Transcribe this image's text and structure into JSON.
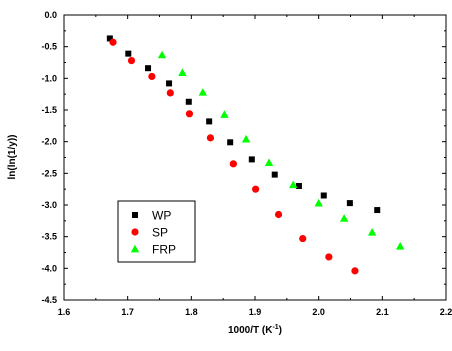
{
  "chart_data": {
    "type": "scatter",
    "xlabel": "1000/T (K",
    "xlabel_sup": "-1",
    "xlabel_suffix": ")",
    "ylabel": "ln(ln(1/y))",
    "xlim": [
      1.6,
      2.2
    ],
    "ylim": [
      -4.5,
      0.0
    ],
    "x_ticks": [
      1.6,
      1.7,
      1.8,
      1.9,
      2.0,
      2.1,
      2.2
    ],
    "x_tick_labels": [
      "1.6",
      "1.7",
      "1.8",
      "1.9",
      "2.0",
      "2.1",
      "2.2"
    ],
    "y_ticks": [
      0.0,
      -0.5,
      -1.0,
      -1.5,
      -2.0,
      -2.5,
      -3.0,
      -3.5,
      -4.0,
      -4.5
    ],
    "y_tick_labels": [
      "0.0",
      "-0.5",
      "-1.0",
      "-1.5",
      "-2.0",
      "-2.5",
      "-3.0",
      "-3.5",
      "-4.0",
      "-4.5"
    ],
    "grid": false,
    "legend_position": "bottom-left",
    "series": [
      {
        "name": "WP",
        "marker": "square",
        "color": "#000000",
        "x": [
          1.672,
          1.701,
          1.732,
          1.765,
          1.796,
          1.828,
          1.861,
          1.895,
          1.931,
          1.969,
          2.008,
          2.049,
          2.092
        ],
        "y": [
          -0.37,
          -0.61,
          -0.84,
          -1.08,
          -1.37,
          -1.68,
          -2.01,
          -2.28,
          -2.52,
          -2.7,
          -2.85,
          -2.97,
          -3.08
        ]
      },
      {
        "name": "SP",
        "marker": "circle",
        "color": "#ff0000",
        "x": [
          1.677,
          1.706,
          1.738,
          1.767,
          1.797,
          1.83,
          1.866,
          1.901,
          1.937,
          1.975,
          2.016,
          2.057
        ],
        "y": [
          -0.43,
          -0.72,
          -0.97,
          -1.23,
          -1.56,
          -1.94,
          -2.35,
          -2.75,
          -3.15,
          -3.53,
          -3.82,
          -4.04
        ]
      },
      {
        "name": "FRP",
        "marker": "triangle",
        "color": "#00ff00",
        "x": [
          1.754,
          1.786,
          1.818,
          1.852,
          1.886,
          1.922,
          1.96,
          2.0,
          2.04,
          2.084,
          2.128
        ],
        "y": [
          -0.63,
          -0.91,
          -1.22,
          -1.57,
          -1.96,
          -2.33,
          -2.68,
          -2.97,
          -3.21,
          -3.43,
          -3.65
        ]
      }
    ]
  }
}
